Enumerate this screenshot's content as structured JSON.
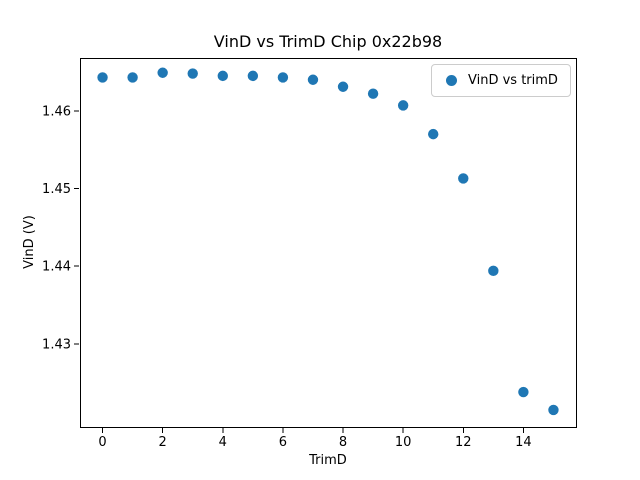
{
  "chart_data": {
    "type": "scatter",
    "title": "VinD vs TrimD Chip 0x22b98",
    "xlabel": "TrimD",
    "ylabel": "VinD (V)",
    "x": [
      0,
      1,
      2,
      3,
      4,
      5,
      6,
      7,
      8,
      9,
      10,
      11,
      12,
      13,
      14,
      15
    ],
    "series": [
      {
        "name": "VinD vs trimD",
        "values": [
          1.4643,
          1.4643,
          1.4649,
          1.4648,
          1.4645,
          1.4645,
          1.4643,
          1.464,
          1.4631,
          1.4622,
          1.4607,
          1.457,
          1.4513,
          1.4394,
          1.4238,
          1.4215
        ]
      }
    ],
    "xlim": [
      -0.75,
      15.75
    ],
    "ylim": [
      1.4193,
      1.4668
    ],
    "xtick_values": [
      0,
      2,
      4,
      6,
      8,
      10,
      12,
      14
    ],
    "xtick_labels": [
      "0",
      "2",
      "4",
      "6",
      "8",
      "10",
      "12",
      "14"
    ],
    "ytick_values": [
      1.43,
      1.44,
      1.45,
      1.46
    ],
    "ytick_labels": [
      "1.43",
      "1.44",
      "1.45",
      "1.46"
    ],
    "grid": false,
    "legend_position": "upper right",
    "marker_color": "#1f77b4",
    "spine_color": "#000000",
    "background_color": "#ffffff"
  }
}
